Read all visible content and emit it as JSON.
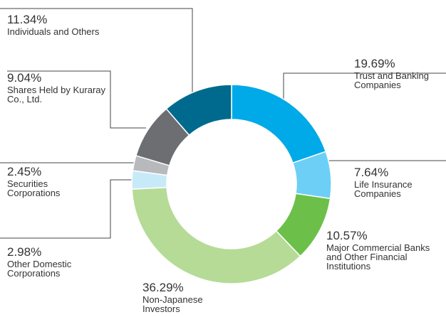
{
  "chart_data": {
    "type": "donut",
    "categories": [
      "Trust and Banking Companies",
      "Life Insurance Companies",
      "Major Commercial Banks and Other Financial Institutions",
      "Non-Japanese Investors",
      "Other Domestic Corporations",
      "Securities Corporations",
      "Shares Held by Kuraray Co., Ltd.",
      "Individuals and Others"
    ],
    "values": [
      19.69,
      7.64,
      10.57,
      36.29,
      2.98,
      2.45,
      9.04,
      11.34
    ],
    "value_labels": [
      "19.69%",
      "7.64%",
      "10.57%",
      "36.29%",
      "2.98%",
      "2.45%",
      "9.04%",
      "11.34%"
    ],
    "colors": [
      "#00a9e8",
      "#6dcff6",
      "#6cc04a",
      "#b5db97",
      "#c7eaf9",
      "#b8b9bc",
      "#6d6e71",
      "#006a8e"
    ]
  }
}
